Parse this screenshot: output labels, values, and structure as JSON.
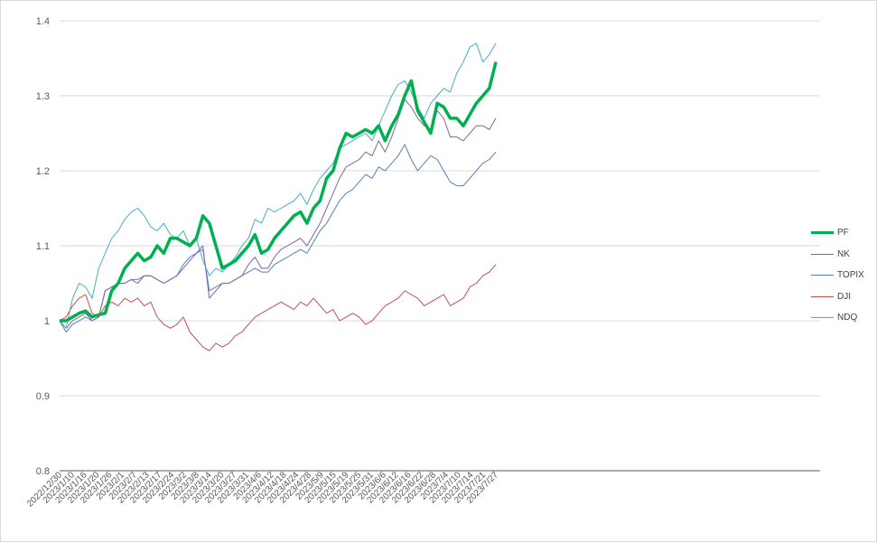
{
  "colors": {
    "PF": "#00b050",
    "NK": "#8064a2",
    "TOPIX": "#4f81bd",
    "DJI": "#c0504d",
    "NDQ": "#4bacc6",
    "grid": "#d9d9d9",
    "axis": "#595959"
  },
  "chart_data": {
    "type": "line",
    "title": "",
    "xlabel": "",
    "ylabel": "",
    "ylim": [
      0.8,
      1.4
    ],
    "yticks": [
      "0.8",
      "0.9",
      "1",
      "1.1",
      "1.2",
      "1.3",
      "1.4"
    ],
    "grid": true,
    "legend_position": "right",
    "xtick_labels": [
      "2022/12/30",
      "2023/1/10",
      "2023/1/16",
      "2023/1/20",
      "2023/1/26",
      "2023/2/1",
      "2023/2/7",
      "2023/2/13",
      "2023/2/17",
      "2023/2/24",
      "2023/3/2",
      "2023/3/8",
      "2023/3/14",
      "2023/3/20",
      "2023/3/27",
      "2023/3/31",
      "2023/4/6",
      "2023/4/12",
      "2023/4/18",
      "2023/4/24",
      "2023/4/28",
      "2023/5/9",
      "2023/5/15",
      "2023/5/19",
      "2023/5/25",
      "2023/5/31",
      "2023/6/6",
      "2023/6/12",
      "2023/6/16",
      "2023/6/22",
      "2023/6/28",
      "2023/7/4",
      "2023/7/10",
      "2023/7/14",
      "2023/7/21",
      "2023/7/27"
    ],
    "series": [
      {
        "name": "PF",
        "values": [
          1.0,
          1.0,
          1.005,
          1.01,
          1.013,
          1.005,
          1.008,
          1.01,
          1.04,
          1.05,
          1.07,
          1.08,
          1.09,
          1.08,
          1.085,
          1.1,
          1.09,
          1.11,
          1.11,
          1.105,
          1.1,
          1.11,
          1.14,
          1.13,
          1.1,
          1.07,
          1.075,
          1.08,
          1.09,
          1.1,
          1.115,
          1.09,
          1.095,
          1.11,
          1.12,
          1.13,
          1.14,
          1.145,
          1.13,
          1.15,
          1.16,
          1.19,
          1.2,
          1.23,
          1.25,
          1.245,
          1.25,
          1.255,
          1.25,
          1.26,
          1.24,
          1.26,
          1.275,
          1.3,
          1.32,
          1.28,
          1.265,
          1.25,
          1.29,
          1.285,
          1.27,
          1.27,
          1.26,
          1.275,
          1.29,
          1.3,
          1.31,
          1.345
        ]
      },
      {
        "name": "NK",
        "values": [
          1.0,
          0.99,
          1.0,
          1.005,
          1.01,
          1.0,
          1.005,
          1.04,
          1.045,
          1.05,
          1.05,
          1.055,
          1.05,
          1.06,
          1.06,
          1.055,
          1.05,
          1.055,
          1.06,
          1.07,
          1.08,
          1.09,
          1.1,
          1.03,
          1.04,
          1.05,
          1.05,
          1.055,
          1.06,
          1.075,
          1.085,
          1.07,
          1.07,
          1.085,
          1.095,
          1.1,
          1.105,
          1.11,
          1.1,
          1.115,
          1.13,
          1.15,
          1.17,
          1.19,
          1.205,
          1.21,
          1.215,
          1.225,
          1.22,
          1.24,
          1.225,
          1.245,
          1.27,
          1.295,
          1.285,
          1.27,
          1.26,
          1.255,
          1.28,
          1.27,
          1.245,
          1.245,
          1.24,
          1.25,
          1.26,
          1.26,
          1.255,
          1.27
        ]
      },
      {
        "name": "TOPIX",
        "values": [
          1.0,
          0.985,
          0.995,
          1.0,
          1.005,
          1.0,
          1.005,
          1.04,
          1.045,
          1.05,
          1.05,
          1.055,
          1.055,
          1.06,
          1.06,
          1.055,
          1.05,
          1.055,
          1.06,
          1.075,
          1.085,
          1.09,
          1.095,
          1.04,
          1.045,
          1.05,
          1.05,
          1.055,
          1.06,
          1.065,
          1.07,
          1.065,
          1.065,
          1.075,
          1.08,
          1.085,
          1.09,
          1.095,
          1.09,
          1.105,
          1.12,
          1.13,
          1.145,
          1.16,
          1.17,
          1.175,
          1.185,
          1.195,
          1.19,
          1.205,
          1.2,
          1.21,
          1.22,
          1.235,
          1.215,
          1.2,
          1.21,
          1.22,
          1.215,
          1.2,
          1.185,
          1.18,
          1.18,
          1.19,
          1.2,
          1.21,
          1.215,
          1.225
        ]
      },
      {
        "name": "DJI",
        "values": [
          1.0,
          1.005,
          1.02,
          1.03,
          1.035,
          1.01,
          1.005,
          1.02,
          1.025,
          1.02,
          1.03,
          1.025,
          1.03,
          1.02,
          1.025,
          1.005,
          0.995,
          0.99,
          0.995,
          1.005,
          0.985,
          0.975,
          0.965,
          0.96,
          0.97,
          0.965,
          0.97,
          0.98,
          0.985,
          0.995,
          1.005,
          1.01,
          1.015,
          1.02,
          1.025,
          1.02,
          1.015,
          1.025,
          1.02,
          1.03,
          1.02,
          1.01,
          1.015,
          1.0,
          1.005,
          1.01,
          1.005,
          0.995,
          1.0,
          1.01,
          1.02,
          1.025,
          1.03,
          1.04,
          1.035,
          1.03,
          1.02,
          1.025,
          1.03,
          1.035,
          1.02,
          1.025,
          1.03,
          1.045,
          1.05,
          1.06,
          1.065,
          1.075
        ]
      },
      {
        "name": "NDQ",
        "values": [
          1.0,
          0.99,
          1.03,
          1.05,
          1.045,
          1.03,
          1.07,
          1.09,
          1.11,
          1.12,
          1.135,
          1.145,
          1.15,
          1.14,
          1.125,
          1.12,
          1.13,
          1.115,
          1.11,
          1.12,
          1.1,
          1.11,
          1.08,
          1.06,
          1.07,
          1.065,
          1.075,
          1.085,
          1.1,
          1.11,
          1.135,
          1.13,
          1.15,
          1.145,
          1.15,
          1.155,
          1.16,
          1.17,
          1.155,
          1.175,
          1.19,
          1.2,
          1.21,
          1.23,
          1.235,
          1.24,
          1.245,
          1.25,
          1.24,
          1.26,
          1.28,
          1.3,
          1.315,
          1.32,
          1.305,
          1.285,
          1.27,
          1.29,
          1.3,
          1.31,
          1.305,
          1.33,
          1.345,
          1.365,
          1.37,
          1.345,
          1.355,
          1.37
        ]
      }
    ]
  }
}
